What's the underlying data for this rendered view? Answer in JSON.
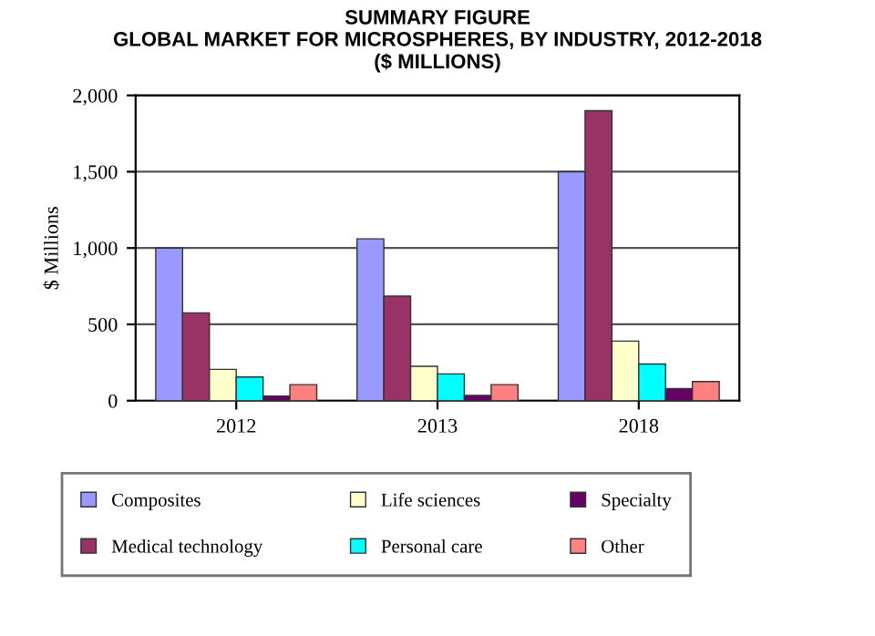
{
  "chart_data": {
    "type": "bar",
    "title": "SUMMARY FIGURE\nGLOBAL MARKET FOR MICROSPHERES, BY INDUSTRY, 2012-2018\n($ MILLIONS)",
    "ylabel": "$ Millions",
    "categories": [
      "2012",
      "2013",
      "2018"
    ],
    "series": [
      {
        "name": "Composites",
        "color": "#9999ff",
        "values": [
          1000,
          1060,
          1500
        ]
      },
      {
        "name": "Medical technology",
        "color": "#993366",
        "values": [
          575,
          685,
          1900
        ]
      },
      {
        "name": "Life sciences",
        "color": "#ffffcc",
        "values": [
          205,
          225,
          390
        ]
      },
      {
        "name": "Personal care",
        "color": "#00ffff",
        "values": [
          155,
          175,
          240
        ]
      },
      {
        "name": "Specialty",
        "color": "#660066",
        "values": [
          30,
          35,
          80
        ]
      },
      {
        "name": "Other",
        "color": "#ff8080",
        "values": [
          105,
          105,
          125
        ]
      }
    ],
    "ylim": [
      0,
      2000
    ],
    "yticks": [
      {
        "value": 0,
        "label": "0"
      },
      {
        "value": 500,
        "label": "500"
      },
      {
        "value": 1000,
        "label": "1,000"
      },
      {
        "value": 1500,
        "label": "1,500"
      },
      {
        "value": 2000,
        "label": "2,000"
      }
    ],
    "grid": "y",
    "legend": "bottom"
  }
}
